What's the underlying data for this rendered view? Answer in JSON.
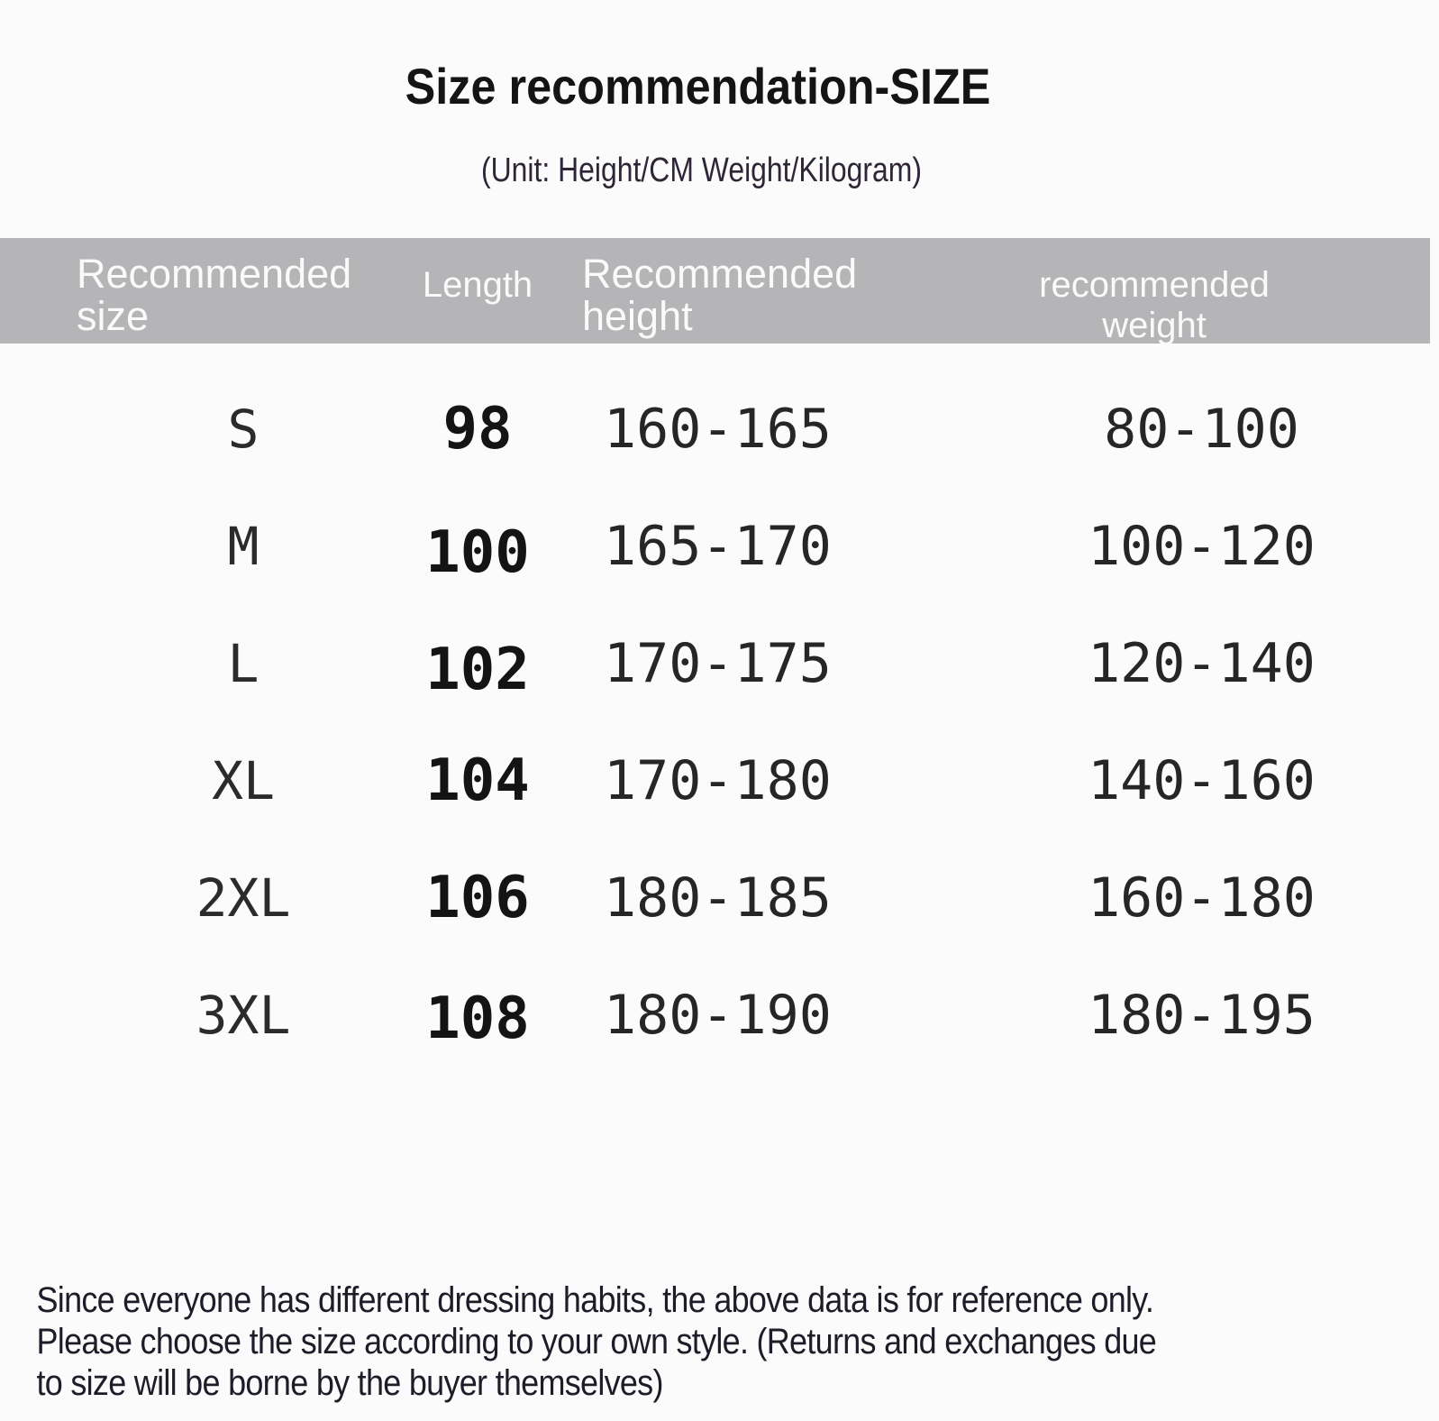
{
  "page": {
    "title": "Size recommendation-SIZE",
    "subtitle": "(Unit: Height/CM Weight/Kilogram)"
  },
  "table": {
    "columns": [
      {
        "label": "Recommended size"
      },
      {
        "label": "Length"
      },
      {
        "label": "Recommended height"
      },
      {
        "label": "recommended weight"
      }
    ],
    "rows": [
      {
        "size": "S",
        "length": "98",
        "height": "160-165",
        "weight": "80-100"
      },
      {
        "size": "M",
        "length": "100",
        "height": "165-170",
        "weight": "100-120"
      },
      {
        "size": "L",
        "length": "102",
        "height": "170-175",
        "weight": "120-140"
      },
      {
        "size": "XL",
        "length": "104",
        "height": "170-180",
        "weight": "140-160"
      },
      {
        "size": "2XL",
        "length": "106",
        "height": "180-185",
        "weight": "160-180"
      },
      {
        "size": "3XL",
        "length": "108",
        "height": "180-190",
        "weight": "180-195"
      }
    ]
  },
  "footer": {
    "lines": [
      "Since everyone has different dressing habits, the above data is for reference only.",
      "Please choose the size according to your own style. (Returns and exchanges due",
      "to size will be borne by the buyer themselves)"
    ]
  },
  "colors": {
    "header_bar": "#b5b5b7",
    "header_text": "#fafafa",
    "background": "#fbfbfb",
    "body_text": "#262626",
    "footer_text": "#1d1d29"
  },
  "chart_data": {
    "type": "table",
    "title": "Size recommendation-SIZE",
    "subtitle": "(Unit: Height/CM Weight/Kilogram)",
    "columns": [
      "Recommended size",
      "Length",
      "Recommended height",
      "recommended weight"
    ],
    "rows": [
      [
        "S",
        98,
        "160-165",
        "80-100"
      ],
      [
        "M",
        100,
        "165-170",
        "100-120"
      ],
      [
        "L",
        102,
        "170-175",
        "120-140"
      ],
      [
        "XL",
        104,
        "170-180",
        "140-160"
      ],
      [
        "2XL",
        106,
        "180-185",
        "160-180"
      ],
      [
        "3XL",
        108,
        "180-190",
        "180-195"
      ]
    ],
    "units": {
      "height": "CM",
      "weight": "Kilogram"
    },
    "note": "Since everyone has different dressing habits, the above data is for reference only. Please choose the size according to your own style. (Returns and exchanges due to size will be borne by the buyer themselves)"
  }
}
